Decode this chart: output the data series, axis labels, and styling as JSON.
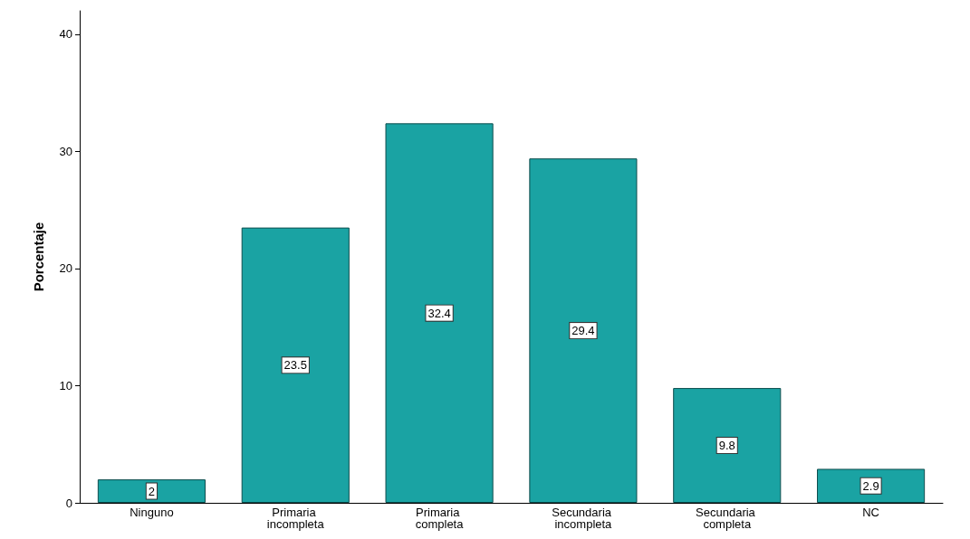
{
  "chart_data": {
    "type": "bar",
    "ylabel": "Porcentaje",
    "categories": [
      "Ninguno",
      "Primaria incompleta",
      "Primaria completa",
      "Secundaria incompleta",
      "Secundaria completa",
      "NC"
    ],
    "values": [
      2,
      23.5,
      32.4,
      29.4,
      9.8,
      2.9
    ],
    "color": "#1aa3a3",
    "ylim": [
      0,
      42
    ],
    "yticks": [
      0,
      10,
      20,
      30,
      40
    ],
    "grid": false,
    "data_labels": true
  }
}
